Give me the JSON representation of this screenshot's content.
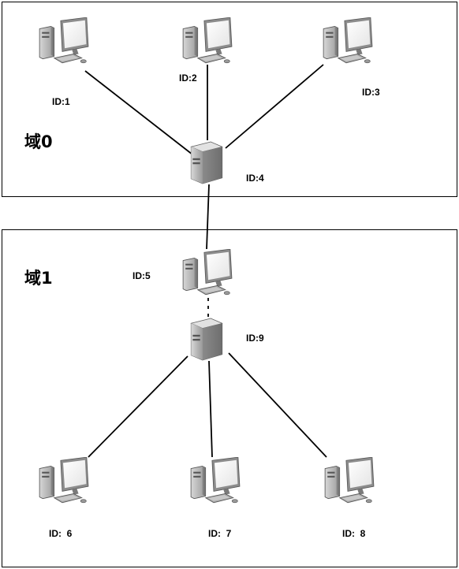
{
  "domains": [
    {
      "title": "域0"
    },
    {
      "title": "域1"
    }
  ],
  "nodes": [
    {
      "id": 1,
      "label": "ID:1",
      "kind": "pc-icon",
      "domain": 0
    },
    {
      "id": 2,
      "label": "ID:2",
      "kind": "pc-icon",
      "domain": 0
    },
    {
      "id": 3,
      "label": "ID:3",
      "kind": "pc-icon",
      "domain": 0
    },
    {
      "id": 4,
      "label": "ID:4",
      "kind": "server-icon",
      "domain": 0
    },
    {
      "id": 5,
      "label": "ID:5",
      "kind": "pc-icon",
      "domain": 1
    },
    {
      "id": 9,
      "label": "ID:9",
      "kind": "server-icon",
      "domain": 1
    },
    {
      "id": 6,
      "label": "ID:  6",
      "kind": "pc-icon",
      "domain": 1
    },
    {
      "id": 7,
      "label": "ID:  7",
      "kind": "pc-icon",
      "domain": 1
    },
    {
      "id": 8,
      "label": "ID:  8",
      "kind": "pc-icon",
      "domain": 1
    }
  ],
  "links": [
    {
      "from": 1,
      "to": 4,
      "style": "solid"
    },
    {
      "from": 2,
      "to": 4,
      "style": "solid"
    },
    {
      "from": 3,
      "to": 4,
      "style": "solid"
    },
    {
      "from": 4,
      "to": 5,
      "style": "solid"
    },
    {
      "from": 5,
      "to": 9,
      "style": "dashed"
    },
    {
      "from": 9,
      "to": 6,
      "style": "solid"
    },
    {
      "from": 9,
      "to": 7,
      "style": "solid"
    },
    {
      "from": 9,
      "to": 8,
      "style": "solid"
    }
  ]
}
